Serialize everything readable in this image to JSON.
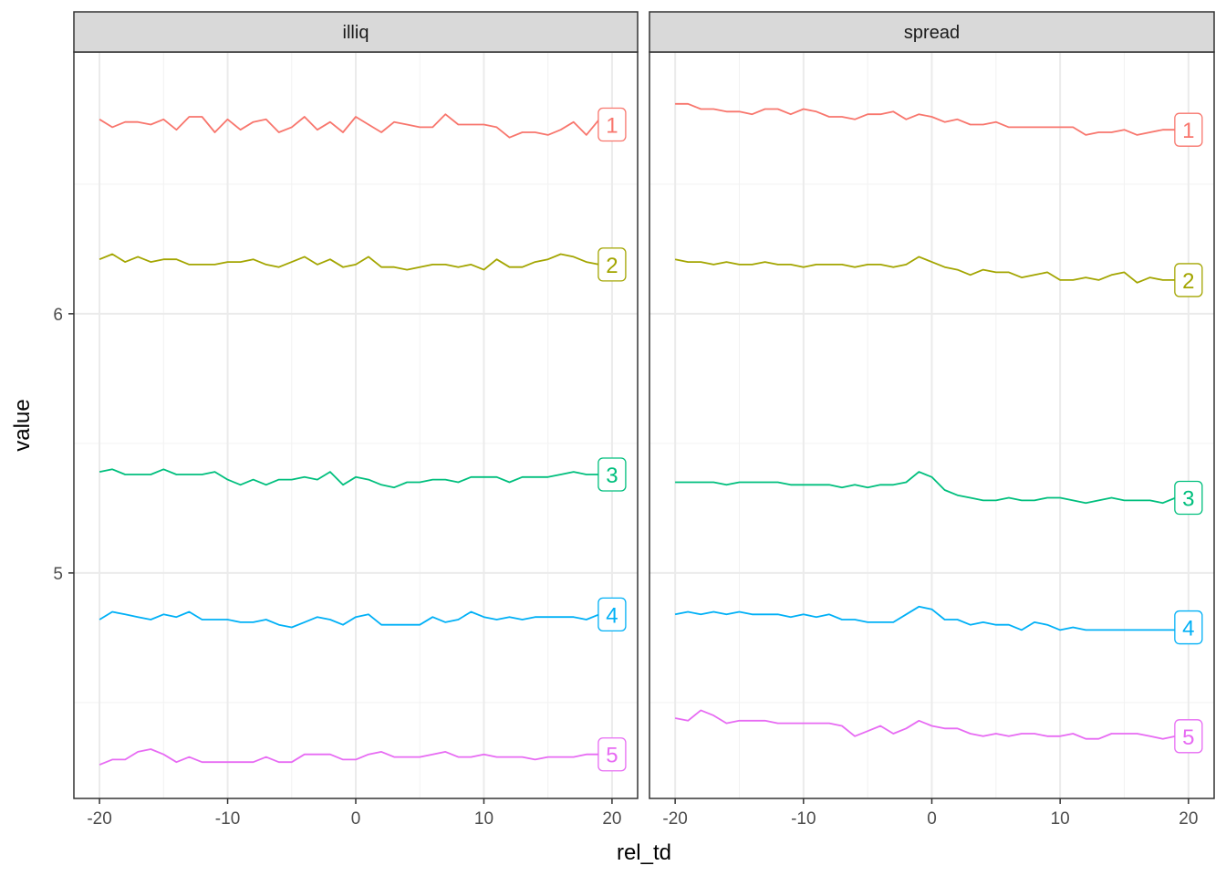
{
  "chart_data": {
    "type": "line",
    "xlabel": "rel_td",
    "ylabel": "value",
    "xlim": [
      -22,
      22
    ],
    "ylim": [
      4.13,
      7.01
    ],
    "x_ticks": [
      -20,
      -10,
      0,
      10,
      20
    ],
    "x_tick_labels": [
      "-20",
      "-10",
      "0",
      "10",
      "20"
    ],
    "y_ticks": [
      5,
      6
    ],
    "y_tick_labels": [
      "5",
      "6"
    ],
    "grid": true,
    "legend": "none",
    "series_colors": {
      "1": "#F8766D",
      "2": "#A3A500",
      "3": "#00BF7D",
      "4": "#00B0F6",
      "5": "#E76BF3"
    },
    "x": [
      -20,
      -19,
      -18,
      -17,
      -16,
      -15,
      -14,
      -13,
      -12,
      -11,
      -10,
      -9,
      -8,
      -7,
      -6,
      -5,
      -4,
      -3,
      -2,
      -1,
      0,
      1,
      2,
      3,
      4,
      5,
      6,
      7,
      8,
      9,
      10,
      11,
      12,
      13,
      14,
      15,
      16,
      17,
      18,
      19,
      20
    ],
    "panels": [
      {
        "name": "illiq",
        "series": [
          {
            "name": "1",
            "values": [
              6.75,
              6.72,
              6.74,
              6.74,
              6.73,
              6.75,
              6.71,
              6.76,
              6.76,
              6.7,
              6.75,
              6.71,
              6.74,
              6.75,
              6.7,
              6.72,
              6.76,
              6.71,
              6.74,
              6.7,
              6.76,
              6.73,
              6.7,
              6.74,
              6.73,
              6.72,
              6.72,
              6.77,
              6.73,
              6.73,
              6.73,
              6.72,
              6.68,
              6.7,
              6.7,
              6.69,
              6.71,
              6.74,
              6.69,
              6.75,
              6.73
            ]
          },
          {
            "name": "2",
            "values": [
              6.21,
              6.23,
              6.2,
              6.22,
              6.2,
              6.21,
              6.21,
              6.19,
              6.19,
              6.19,
              6.2,
              6.2,
              6.21,
              6.19,
              6.18,
              6.2,
              6.22,
              6.19,
              6.21,
              6.18,
              6.19,
              6.22,
              6.18,
              6.18,
              6.17,
              6.18,
              6.19,
              6.19,
              6.18,
              6.19,
              6.17,
              6.21,
              6.18,
              6.18,
              6.2,
              6.21,
              6.23,
              6.22,
              6.2,
              6.19,
              6.19
            ]
          },
          {
            "name": "3",
            "values": [
              5.39,
              5.4,
              5.38,
              5.38,
              5.38,
              5.4,
              5.38,
              5.38,
              5.38,
              5.39,
              5.36,
              5.34,
              5.36,
              5.34,
              5.36,
              5.36,
              5.37,
              5.36,
              5.39,
              5.34,
              5.37,
              5.36,
              5.34,
              5.33,
              5.35,
              5.35,
              5.36,
              5.36,
              5.35,
              5.37,
              5.37,
              5.37,
              5.35,
              5.37,
              5.37,
              5.37,
              5.38,
              5.39,
              5.38,
              5.38,
              5.38
            ]
          },
          {
            "name": "4",
            "values": [
              4.82,
              4.85,
              4.84,
              4.83,
              4.82,
              4.84,
              4.83,
              4.85,
              4.82,
              4.82,
              4.82,
              4.81,
              4.81,
              4.82,
              4.8,
              4.79,
              4.81,
              4.83,
              4.82,
              4.8,
              4.83,
              4.84,
              4.8,
              4.8,
              4.8,
              4.8,
              4.83,
              4.81,
              4.82,
              4.85,
              4.83,
              4.82,
              4.83,
              4.82,
              4.83,
              4.83,
              4.83,
              4.83,
              4.82,
              4.84,
              4.84
            ]
          },
          {
            "name": "5",
            "values": [
              4.26,
              4.28,
              4.28,
              4.31,
              4.32,
              4.3,
              4.27,
              4.29,
              4.27,
              4.27,
              4.27,
              4.27,
              4.27,
              4.29,
              4.27,
              4.27,
              4.3,
              4.3,
              4.3,
              4.28,
              4.28,
              4.3,
              4.31,
              4.29,
              4.29,
              4.29,
              4.3,
              4.31,
              4.29,
              4.29,
              4.3,
              4.29,
              4.29,
              4.29,
              4.28,
              4.29,
              4.29,
              4.29,
              4.3,
              4.3,
              4.3
            ]
          }
        ],
        "labels": [
          "1",
          "2",
          "3",
          "4",
          "5"
        ]
      },
      {
        "name": "spread",
        "series": [
          {
            "name": "1",
            "values": [
              6.81,
              6.81,
              6.79,
              6.79,
              6.78,
              6.78,
              6.77,
              6.79,
              6.79,
              6.77,
              6.79,
              6.78,
              6.76,
              6.76,
              6.75,
              6.77,
              6.77,
              6.78,
              6.75,
              6.77,
              6.76,
              6.74,
              6.75,
              6.73,
              6.73,
              6.74,
              6.72,
              6.72,
              6.72,
              6.72,
              6.72,
              6.72,
              6.69,
              6.7,
              6.7,
              6.71,
              6.69,
              6.7,
              6.71,
              6.71,
              6.71
            ]
          },
          {
            "name": "2",
            "values": [
              6.21,
              6.2,
              6.2,
              6.19,
              6.2,
              6.19,
              6.19,
              6.2,
              6.19,
              6.19,
              6.18,
              6.19,
              6.19,
              6.19,
              6.18,
              6.19,
              6.19,
              6.18,
              6.19,
              6.22,
              6.2,
              6.18,
              6.17,
              6.15,
              6.17,
              6.16,
              6.16,
              6.14,
              6.15,
              6.16,
              6.13,
              6.13,
              6.14,
              6.13,
              6.15,
              6.16,
              6.12,
              6.14,
              6.13,
              6.13,
              6.13
            ]
          },
          {
            "name": "3",
            "values": [
              5.35,
              5.35,
              5.35,
              5.35,
              5.34,
              5.35,
              5.35,
              5.35,
              5.35,
              5.34,
              5.34,
              5.34,
              5.34,
              5.33,
              5.34,
              5.33,
              5.34,
              5.34,
              5.35,
              5.39,
              5.37,
              5.32,
              5.3,
              5.29,
              5.28,
              5.28,
              5.29,
              5.28,
              5.28,
              5.29,
              5.29,
              5.28,
              5.27,
              5.28,
              5.29,
              5.28,
              5.28,
              5.28,
              5.27,
              5.29,
              5.29
            ]
          },
          {
            "name": "4",
            "values": [
              4.84,
              4.85,
              4.84,
              4.85,
              4.84,
              4.85,
              4.84,
              4.84,
              4.84,
              4.83,
              4.84,
              4.83,
              4.84,
              4.82,
              4.82,
              4.81,
              4.81,
              4.81,
              4.84,
              4.87,
              4.86,
              4.82,
              4.82,
              4.8,
              4.81,
              4.8,
              4.8,
              4.78,
              4.81,
              4.8,
              4.78,
              4.79,
              4.78,
              4.78,
              4.78,
              4.78,
              4.78,
              4.78,
              4.78,
              4.78,
              4.79
            ]
          },
          {
            "name": "5",
            "values": [
              4.44,
              4.43,
              4.47,
              4.45,
              4.42,
              4.43,
              4.43,
              4.43,
              4.42,
              4.42,
              4.42,
              4.42,
              4.42,
              4.41,
              4.37,
              4.39,
              4.41,
              4.38,
              4.4,
              4.43,
              4.41,
              4.4,
              4.4,
              4.38,
              4.37,
              4.38,
              4.37,
              4.38,
              4.38,
              4.37,
              4.37,
              4.38,
              4.36,
              4.36,
              4.38,
              4.38,
              4.38,
              4.37,
              4.36,
              4.37,
              4.37
            ]
          }
        ],
        "labels": [
          "1",
          "2",
          "3",
          "4",
          "5"
        ]
      }
    ]
  }
}
